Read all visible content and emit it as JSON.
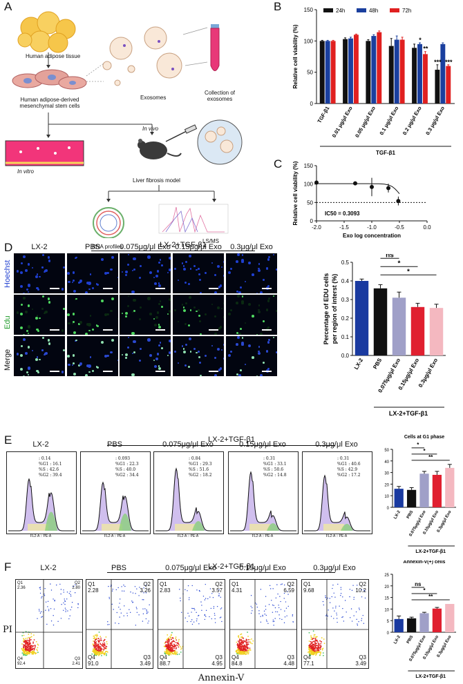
{
  "letters": {
    "a": "A",
    "b": "B",
    "c": "C",
    "d": "D",
    "e": "E",
    "f": "F"
  },
  "panelA": {
    "tissue": "Human adipose tissue",
    "cells": "Human adipose-derived mesenchymal stem cells",
    "cells_line1": "Human adipose-derived",
    "cells_line2": "mesenchymal stem cells",
    "exosomes": "Exosomes",
    "collection_line1": "Collection of",
    "collection_line2": "exosomes",
    "in_vitro": "In vitro",
    "in_vivo": "In vivo",
    "model": "Liver fibrosis model",
    "rna": "RNA profiles",
    "lsms": "LS/MS"
  },
  "panelD": {
    "group_header": "LX-2+TGF-β1",
    "columns": [
      "LX-2",
      "PBS",
      "0.075μg/μl Exo",
      "0.15μg/μl Exo",
      "0.3μg/μl Exo"
    ],
    "rows": [
      "Hoechst",
      "Edu",
      "Merge"
    ],
    "row_colors": [
      "#1f3fd0",
      "#1f9a2a",
      "#111111"
    ]
  },
  "panelE": {
    "group_header": "LX-2+TGF-β1",
    "columns": [
      "LX-2",
      "PBS",
      "0.075μg/μl Exo",
      "0.15μg/μl Exo",
      "0.3μg/μl Exo"
    ],
    "stats": [
      ": 0.14\n%G1 : 16.1\n%S : 42.6\n%G2 : 39.4",
      ": 0.093\n%G1 : 22.3\n%S : 40.0\n%G2 : 34.4",
      ": 0.84\n%G1 : 29.3\n%S : 51.6\n%G2 : 18.2",
      ": 0.31\n%G1 : 33.1\n%S : 50.6\n%G2 : 14.8",
      ": 0.31\n%G1 : 40.6\n%S : 42.9\n%G2 : 17.2"
    ],
    "axis_label": "FL2-A :: PE-A"
  },
  "panelF": {
    "group_header": "LX-2+TGF-β1",
    "columns": [
      "LX-2",
      "PBS",
      "0.075μg/μl Exo",
      "0.15μg/μl Exo",
      "0.3μg/μl Exo"
    ],
    "ylabel": "PI",
    "xlabel": "Annexin-V",
    "quadrants": [
      {
        "q1": "Q1\n2.36",
        "q2": "Q2\n2.80",
        "q3": "Q3\n2.41",
        "q4": "Q4\n92.4"
      },
      {
        "q1": "Q1\n2.28",
        "q2": "Q2\n3.26",
        "q3": "Q3\n3.49",
        "q4": "Q4\n91.0"
      },
      {
        "q1": "Q1\n2.83",
        "q2": "Q2\n3.57",
        "q3": "Q3\n4.95",
        "q4": "Q4\n88.7"
      },
      {
        "q1": "Q1\n4.31",
        "q2": "Q2\n6.59",
        "q3": "Q3\n4.48",
        "q4": "Q4\n84.8"
      },
      {
        "q1": "Q1\n9.68",
        "q2": "Q2\n10.2",
        "q3": "Q3\n3.49",
        "q4": "Q4\n77.1"
      }
    ]
  },
  "chart_data": [
    {
      "id": "B",
      "type": "bar",
      "ylabel": "Relative cell viability (%)",
      "xlabel": "TGF-β1",
      "ylim": [
        0,
        150
      ],
      "yticks": [
        0,
        50,
        100,
        150
      ],
      "categories": [
        "TGF-β1",
        "0.01 μg/μl Exo",
        "0.05 μg/μl Exo",
        "0.1 μg/μl Exo",
        "0.2 μg/μl Exo",
        "0.3 μg/μl Exo"
      ],
      "legend": "top",
      "series": [
        {
          "name": "24h",
          "color": "#111111",
          "values": [
            100,
            103,
            100,
            92,
            89,
            54
          ],
          "errors": [
            1,
            2,
            2,
            12,
            6,
            8
          ]
        },
        {
          "name": "48h",
          "color": "#1a3f9e",
          "values": [
            100,
            104,
            108,
            102,
            95,
            95
          ],
          "errors": [
            1,
            2,
            2,
            6,
            2,
            2
          ]
        },
        {
          "name": "72h",
          "color": "#e02020",
          "values": [
            100,
            110,
            114,
            102,
            79,
            60
          ],
          "errors": [
            1,
            1,
            2,
            4,
            4,
            2
          ]
        }
      ],
      "annotations": [
        {
          "category": 4,
          "series": 1,
          "text": "*"
        },
        {
          "category": 4,
          "series": 2,
          "text": "**"
        },
        {
          "category": 5,
          "series": 0,
          "text": "***"
        },
        {
          "category": 5,
          "series": 2,
          "text": "***"
        }
      ]
    },
    {
      "id": "C",
      "type": "scatter",
      "ylabel": "Relative cell viability (%)",
      "xlabel": "Exo log concentration",
      "xlim": [
        -2.0,
        0.0
      ],
      "xticks": [
        -2.0,
        -1.5,
        -1.0,
        -0.5,
        0.0
      ],
      "ylim": [
        0,
        150
      ],
      "yticks": [
        0,
        50,
        100,
        150
      ],
      "points": [
        {
          "x": -2.0,
          "y": 104,
          "err": 2
        },
        {
          "x": -1.3,
          "y": 102,
          "err": 1
        },
        {
          "x": -1.0,
          "y": 92,
          "err": 25
        },
        {
          "x": -0.7,
          "y": 89,
          "err": 12
        },
        {
          "x": -0.52,
          "y": 54,
          "err": 12
        }
      ],
      "reference_line": 50,
      "annotation": "IC50 = 0.3093"
    },
    {
      "id": "D",
      "type": "bar",
      "ylabel": "Percentage of EDU cells per region of interst (%)",
      "ylabel_line1": "Percentage of EDU cells",
      "ylabel_line2": "per region of interst (%)",
      "ylim": [
        0,
        0.5
      ],
      "yticks": [
        0.0,
        0.1,
        0.2,
        0.3,
        0.4,
        0.5
      ],
      "categories": [
        "LX-2",
        "PBS",
        "0.075μg/μl Exo",
        "0.15μg/μl Exo",
        "0.3μg/μl Exo"
      ],
      "values": [
        0.4,
        0.36,
        0.31,
        0.26,
        0.255
      ],
      "errors": [
        0.01,
        0.02,
        0.03,
        0.02,
        0.02
      ],
      "colors": [
        "#1a3aa0",
        "#111111",
        "#a0a0c8",
        "#e02030",
        "#f4b8c0"
      ],
      "group_label": "LX-2+TGF-β1",
      "significance": [
        {
          "from": 1,
          "to": 2,
          "text": "ns"
        },
        {
          "from": 1,
          "to": 3,
          "text": "*"
        },
        {
          "from": 1,
          "to": 4,
          "text": "*"
        }
      ]
    },
    {
      "id": "E",
      "type": "bar",
      "title": "Cells at G1 phase",
      "ylim": [
        0,
        50
      ],
      "yticks": [
        0,
        10,
        20,
        30,
        40,
        50
      ],
      "categories": [
        "LX-2",
        "PBS",
        "0.075μg/μl Exo",
        "0.15μg/μl Exo",
        "0.3μg/μl Exo"
      ],
      "values": [
        16,
        15,
        29,
        28,
        34
      ],
      "errors": [
        2,
        2,
        2,
        3,
        3
      ],
      "colors": [
        "#1a3aa0",
        "#111111",
        "#a0a0c8",
        "#e02030",
        "#f4b8c0"
      ],
      "group_label": "LX-2+TGF-β1",
      "significance": [
        {
          "from": 1,
          "to": 2,
          "text": "*"
        },
        {
          "from": 1,
          "to": 3,
          "text": "*"
        },
        {
          "from": 1,
          "to": 4,
          "text": "**"
        }
      ]
    },
    {
      "id": "F",
      "type": "bar",
      "title": "Annexin-V(+) cells",
      "ylim": [
        0,
        25
      ],
      "yticks": [
        0,
        5,
        10,
        15,
        20,
        25
      ],
      "categories": [
        "LX-2",
        "PBS",
        "0.075μg/μl Exo",
        "0.15μg/μl Exo",
        "0.3μg/μl Exo"
      ],
      "values": [
        5.7,
        6.0,
        8.2,
        10.2,
        12.2
      ],
      "errors": [
        1.3,
        0.5,
        0.4,
        0.5,
        0.0
      ],
      "colors": [
        "#1a3aa0",
        "#111111",
        "#a0a0c8",
        "#e02030",
        "#f4b8c0"
      ],
      "group_label": "LX-2+TGF-β1",
      "significance": [
        {
          "from": 1,
          "to": 2,
          "text": "ns"
        },
        {
          "from": 1,
          "to": 3,
          "text": "*"
        },
        {
          "from": 1,
          "to": 4,
          "text": "**"
        }
      ]
    }
  ]
}
